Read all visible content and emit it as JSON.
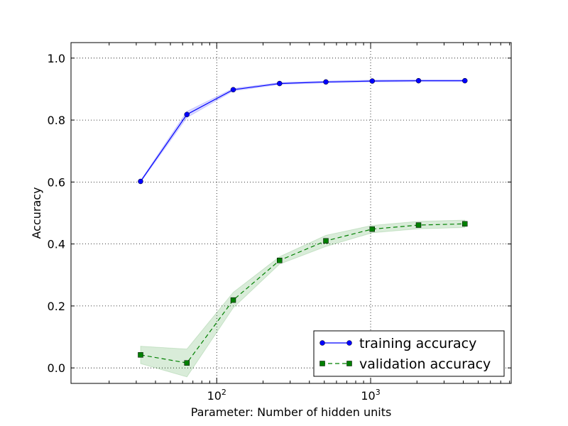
{
  "chart_data": {
    "type": "line",
    "xlabel": "Parameter: Number of hidden units",
    "ylabel": "Accuracy",
    "x_scale": "log",
    "xlim": [
      11.3,
      8192
    ],
    "ylim": [
      -0.05,
      1.05
    ],
    "x_ticks": [
      {
        "value": 100,
        "base": "10",
        "exp": "2"
      },
      {
        "value": 1000,
        "base": "10",
        "exp": "3"
      }
    ],
    "y_ticks": [
      {
        "value": 0.0,
        "label": "0.0"
      },
      {
        "value": 0.2,
        "label": "0.2"
      },
      {
        "value": 0.4,
        "label": "0.4"
      },
      {
        "value": 0.6,
        "label": "0.6"
      },
      {
        "value": 0.8,
        "label": "0.8"
      },
      {
        "value": 1.0,
        "label": "1.0"
      }
    ],
    "grid": true,
    "legend_position": "lower-right",
    "x": [
      32,
      64,
      128,
      256,
      512,
      1024,
      2048,
      4096
    ],
    "series": [
      {
        "name": "training accuracy",
        "color": "#0000ff",
        "marker": "circle",
        "linestyle": "solid",
        "values": [
          0.602,
          0.818,
          0.898,
          0.918,
          0.923,
          0.926,
          0.927,
          0.927
        ],
        "band": [
          0.003,
          0.01,
          0.004,
          0.003,
          0.003,
          0.003,
          0.003,
          0.003
        ]
      },
      {
        "name": "validation accuracy",
        "color": "#008000",
        "marker": "square",
        "linestyle": "dashed",
        "values": [
          0.042,
          0.016,
          0.219,
          0.347,
          0.41,
          0.448,
          0.461,
          0.465
        ],
        "band": [
          0.028,
          0.045,
          0.025,
          0.012,
          0.018,
          0.012,
          0.012,
          0.012
        ]
      }
    ]
  }
}
